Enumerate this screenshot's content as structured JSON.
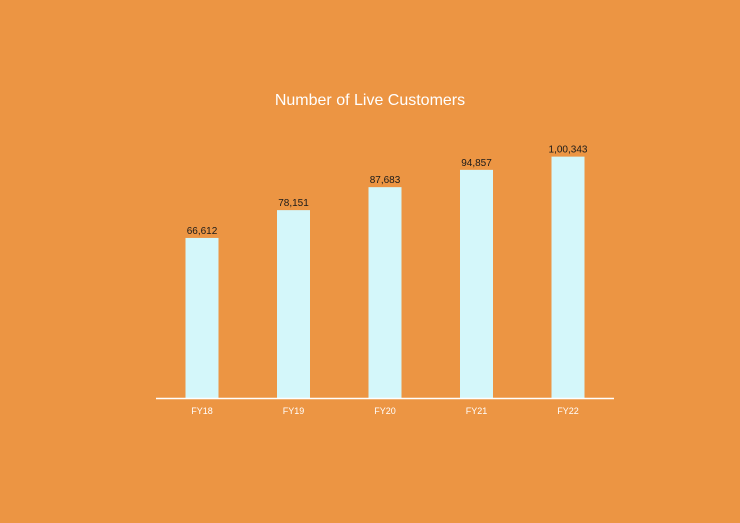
{
  "chart_data": {
    "type": "bar",
    "title": "Number of Live Customers",
    "categories": [
      "FY18",
      "FY19",
      "FY20",
      "FY21",
      "FY22"
    ],
    "values": [
      66612,
      78151,
      87683,
      94857,
      100343
    ],
    "data_labels": [
      "66,612",
      "78,151",
      "87,683",
      "94,857",
      "1,00,343"
    ],
    "xlabel": "",
    "ylabel": "",
    "ylim": [
      0,
      106000
    ],
    "grid": false,
    "legend": "none",
    "colors": {
      "background": "#EC9543",
      "bar": "#D4F7FA",
      "axis": "#FFFFFF",
      "title": "#FFFFFF",
      "data_label": "#1A1A1A",
      "tick_label": "#FFFFFF"
    }
  }
}
